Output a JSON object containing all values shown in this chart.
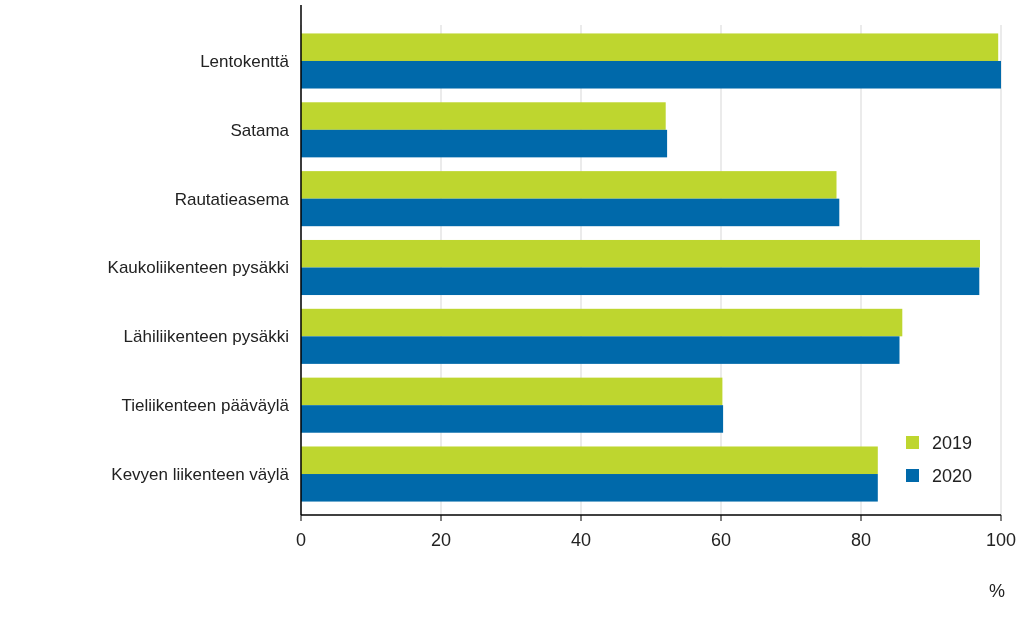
{
  "chart_data": {
    "type": "bar",
    "orientation": "horizontal",
    "xlabel": "%",
    "categories": [
      "Lentokenttä",
      "Satama",
      "Rautatieasema",
      "Kaukoliikenteen pysäkki",
      "Lähiliikenteen pysäkki",
      "Tieliikenteen pääväylä",
      "Kevyen liikenteen väylä"
    ],
    "series": [
      {
        "name": "2019",
        "color": "#bed62f",
        "values": [
          99.6,
          52.1,
          76.5,
          97.0,
          85.9,
          60.2,
          82.4
        ]
      },
      {
        "name": "2020",
        "color": "#0069aa",
        "values": [
          100,
          52.3,
          76.9,
          96.9,
          85.5,
          60.3,
          82.4
        ]
      }
    ],
    "xlim": [
      0,
      100
    ],
    "xticks": [
      0,
      20,
      40,
      60,
      80,
      100
    ],
    "grid": "x",
    "legend": "bottom right"
  }
}
